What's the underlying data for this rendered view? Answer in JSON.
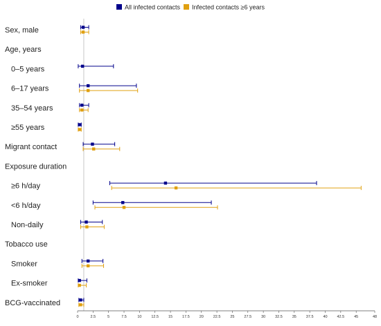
{
  "chart_data": {
    "type": "forest",
    "title": "",
    "xlabel": "",
    "ylabel": "",
    "xlim": [
      0,
      48
    ],
    "reference_line": 1,
    "x_ticks": [
      0,
      2.5,
      5,
      7.5,
      10,
      12.5,
      15,
      17.5,
      20,
      22.5,
      25,
      27.5,
      30,
      32.5,
      35,
      37.5,
      40,
      42.5,
      45,
      48
    ],
    "x_tick_labels": [
      "0",
      "2.5",
      "5",
      "7.5",
      "10",
      "12.5",
      "15",
      "17.5",
      "20",
      "22.5",
      "25",
      "27.5",
      "30",
      "32.5",
      "35",
      "37.5",
      "40",
      "42.5",
      "45",
      "48"
    ],
    "legend": {
      "placement": "top-center",
      "items": [
        {
          "name": "All infected contacts",
          "color": "#00008b"
        },
        {
          "name": "Infected contacts ≥6 years",
          "color": "#e0a010"
        }
      ]
    },
    "rows": [
      {
        "label": "Sex, male",
        "indent": false,
        "all": {
          "est": 0.9,
          "lo": 0.5,
          "hi": 1.8
        },
        "age6": {
          "est": 0.9,
          "lo": 0.5,
          "hi": 1.8
        }
      },
      {
        "label": "Age, years",
        "indent": false
      },
      {
        "label": "0–5 years",
        "indent": true,
        "all": {
          "est": 0.8,
          "lo": 0.1,
          "hi": 5.8
        }
      },
      {
        "label": "6–17 years",
        "indent": true,
        "all": {
          "est": 1.7,
          "lo": 0.3,
          "hi": 9.5
        },
        "age6": {
          "est": 1.7,
          "lo": 0.3,
          "hi": 9.7
        }
      },
      {
        "label": "35–54 years",
        "indent": true,
        "all": {
          "est": 0.7,
          "lo": 0.3,
          "hi": 1.8
        },
        "age6": {
          "est": 0.7,
          "lo": 0.3,
          "hi": 1.7
        }
      },
      {
        "label": "≥55 years",
        "indent": true,
        "all": {
          "est": 0.3,
          "lo": 0.1,
          "hi": 0.6
        },
        "age6": {
          "est": 0.3,
          "lo": 0.1,
          "hi": 0.6
        }
      },
      {
        "label": "Migrant contact",
        "indent": false,
        "all": {
          "est": 2.4,
          "lo": 0.9,
          "hi": 6.0
        },
        "age6": {
          "est": 2.6,
          "lo": 0.9,
          "hi": 6.8
        }
      },
      {
        "label": "Exposure duration",
        "indent": false
      },
      {
        "label": "≥6 h/day",
        "indent": true,
        "all": {
          "est": 14.2,
          "lo": 5.2,
          "hi": 38.6
        },
        "age6": {
          "est": 15.9,
          "lo": 5.5,
          "hi": 45.8
        }
      },
      {
        "label": "<6 h/day",
        "indent": true,
        "all": {
          "est": 7.3,
          "lo": 2.5,
          "hi": 21.6
        },
        "age6": {
          "est": 7.5,
          "lo": 2.8,
          "hi": 22.6
        }
      },
      {
        "label": "Non-daily",
        "indent": true,
        "all": {
          "est": 1.4,
          "lo": 0.5,
          "hi": 4.0
        },
        "age6": {
          "est": 1.5,
          "lo": 0.5,
          "hi": 4.3
        }
      },
      {
        "label": "Tobacco use",
        "indent": false
      },
      {
        "label": "Smoker",
        "indent": true,
        "all": {
          "est": 1.7,
          "lo": 0.7,
          "hi": 4.1
        },
        "age6": {
          "est": 1.7,
          "lo": 0.7,
          "hi": 4.2
        }
      },
      {
        "label": "Ex-smoker",
        "indent": true,
        "all": {
          "est": 0.3,
          "lo": 0.1,
          "hi": 1.5
        },
        "age6": {
          "est": 0.3,
          "lo": 0.1,
          "hi": 1.4
        }
      },
      {
        "label": "BCG-vaccinated",
        "indent": false,
        "all": {
          "est": 0.5,
          "lo": 0.2,
          "hi": 1.0
        },
        "age6": {
          "est": 0.5,
          "lo": 0.2,
          "hi": 1.0
        }
      }
    ]
  }
}
